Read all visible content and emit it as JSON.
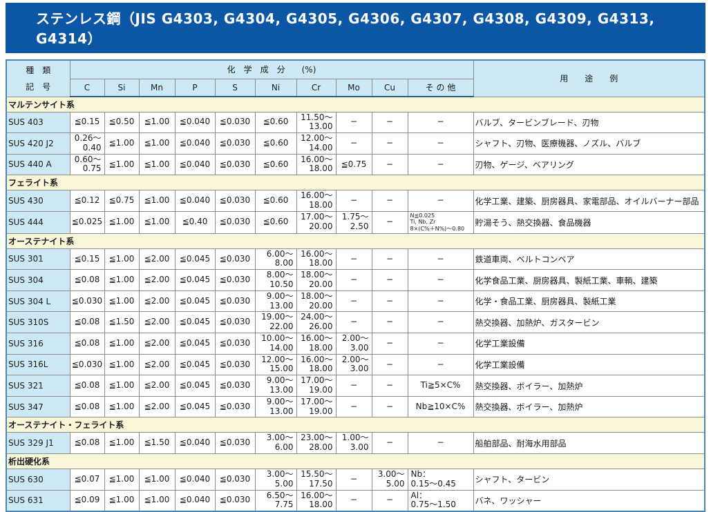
{
  "title": "ステンレス鋼（JIS G4303, G4304, G4305, G4306, G4307, G4308, G4309, G4313, G4314）",
  "table": {
    "header": {
      "type_label": "種　類\n記　号",
      "chem_group": "化　学　成　分　　(%)",
      "elements": [
        "C",
        "Si",
        "Mn",
        "P",
        "S",
        "Ni",
        "Cr",
        "Mo",
        "Cu",
        "そ の 他"
      ],
      "usage": "用　　途　　例"
    },
    "sections": [
      {
        "name": "マルテンサイト系",
        "rows": [
          {
            "code": "SUS 403",
            "cols": [
              "≦0.15",
              "≦0.50",
              "≦1.00",
              "≦0.040",
              "≦0.030",
              "≦0.60",
              "11.50～\n13.00",
              "−",
              "−",
              "−"
            ],
            "use": "バルブ、タービンブレード、刃物"
          },
          {
            "code": "SUS 420 J2",
            "cols": [
              "0.26～\n0.40",
              "≦1.00",
              "≦1.00",
              "≦0.040",
              "≦0.030",
              "≦0.60",
              "12.00～\n14.00",
              "−",
              "−",
              "−"
            ],
            "use": "シャフト、刃物、医療機器、ノズル、バルブ"
          },
          {
            "code": "SUS 440 A",
            "cols": [
              "0.60～\n0.75",
              "≦1.00",
              "≦1.00",
              "≦0.040",
              "≦0.030",
              "≦0.60",
              "16.00～\n18.00",
              "≦0.75",
              "−",
              "−"
            ],
            "use": "刃物、ゲージ、ベアリング"
          }
        ]
      },
      {
        "name": "フェライト系",
        "rows": [
          {
            "code": "SUS 430",
            "cols": [
              "≦0.12",
              "≦0.75",
              "≦1.00",
              "≦0.040",
              "≦0.030",
              "≦0.60",
              "16.00～\n18.00",
              "−",
              "−",
              "−"
            ],
            "use": "化学工業、建築、厨房器具、家電部品、オイルバーナー部品"
          },
          {
            "code": "SUS 444",
            "cols": [
              "≦0.025",
              "≦1.00",
              "≦1.00",
              "≦0.40",
              "≦0.030",
              "≦0.60",
              "17.00～\n20.00",
              "1.75～\n2.50",
              "−",
              "N≦0.025\nTi, Nb, Zr\n8×(C%＋N%)～0.80"
            ],
            "use": "貯湯そう、熱交換器、食品機器"
          }
        ]
      },
      {
        "name": "オーステナイト系",
        "rows": [
          {
            "code": "SUS 301",
            "cols": [
              "≦0.15",
              "≦1.00",
              "≦2.00",
              "≦0.045",
              "≦0.030",
              "6.00～\n8.00",
              "16.00～\n18.00",
              "−",
              "−",
              "−"
            ],
            "use": "鉄道車両、ベルトコンベア"
          },
          {
            "code": "SUS 304",
            "cols": [
              "≦0.08",
              "≦1.00",
              "≦2.00",
              "≦0.045",
              "≦0.030",
              "8.00～\n10.50",
              "18.00～\n20.00",
              "−",
              "−",
              "−"
            ],
            "use": "化学食品工業、厨房器具、製紙工業、車輌、建築"
          },
          {
            "code": "SUS 304 L",
            "cols": [
              "≦0.030",
              "≦1.00",
              "≦2.00",
              "≦0.045",
              "≦0.030",
              "9.00～\n13.00",
              "18.00～\n20.00",
              "−",
              "−",
              "−"
            ],
            "use": "化学・食品工業、厨房器具、製紙工業"
          },
          {
            "code": "SUS 310S",
            "cols": [
              "≦0.08",
              "≦1.50",
              "≦2.00",
              "≦0.045",
              "≦0.030",
              "19.00～\n22.00",
              "24.00～\n26.00",
              "−",
              "−",
              "−"
            ],
            "use": "熱交換器、加熱炉、ガスタービン"
          },
          {
            "code": "SUS 316",
            "cols": [
              "≦0.08",
              "≦1.00",
              "≦2.00",
              "≦0.045",
              "≦0.030",
              "10.00～\n14.00",
              "16.00～\n18.00",
              "2.00～\n3.00",
              "−",
              "−"
            ],
            "use": "化学工業設備"
          },
          {
            "code": "SUS 316L",
            "cols": [
              "≦0.030",
              "≦1.00",
              "≦2.00",
              "≦0.045",
              "≦0.030",
              "12.00～\n15.00",
              "16.00～\n18.00",
              "2.00～\n3.00",
              "−",
              "−"
            ],
            "use": "化学工業設備"
          },
          {
            "code": "SUS 321",
            "cols": [
              "≦0.08",
              "≦1.00",
              "≦2.00",
              "≦0.045",
              "≦0.030",
              "9.00～\n13.00",
              "17.00～\n19.00",
              "−",
              "−",
              "Ti≧5×C%"
            ],
            "use": "熱交換器、ボイラー、加熱炉"
          },
          {
            "code": "SUS 347",
            "cols": [
              "≦0.08",
              "≦1.00",
              "≦2.00",
              "≦0.045",
              "≦0.030",
              "9.00～\n13.00",
              "17.00～\n19.00",
              "−",
              "−",
              "Nb≧10×C%"
            ],
            "use": "熱交換器、ボイラー、加熱炉"
          }
        ]
      },
      {
        "name": "オーステナイト・フェライト系",
        "rows": [
          {
            "code": "SUS 329 J1",
            "cols": [
              "≦0.08",
              "≦1.00",
              "≦1.50",
              "≦0.040",
              "≦0.030",
              "3.00～\n6.00",
              "23.00～\n28.00",
              "1.00～\n3.00",
              "−",
              "−"
            ],
            "use": "船舶部品、耐海水用部品"
          }
        ]
      },
      {
        "name": "析出硬化系",
        "rows": [
          {
            "code": "SUS 630",
            "cols": [
              "≦0.07",
              "≦1.00",
              "≦1.00",
              "≦0.040",
              "≦0.030",
              "3.00～\n5.00",
              "15.50～\n17.50",
              "−",
              "3.00～\n5.00",
              "Nb：\n0.15～0.45"
            ],
            "use": "シャフト、タービン"
          },
          {
            "code": "SUS 631",
            "cols": [
              "≦0.09",
              "≦1.00",
              "≦1.00",
              "≦0.040",
              "≦0.030",
              "6.50～\n7.75",
              "16.00～\n18.00",
              "−",
              "−",
              "Al：\n0.75～1.50"
            ],
            "use": "バネ、ワッシャー"
          }
        ]
      }
    ]
  }
}
